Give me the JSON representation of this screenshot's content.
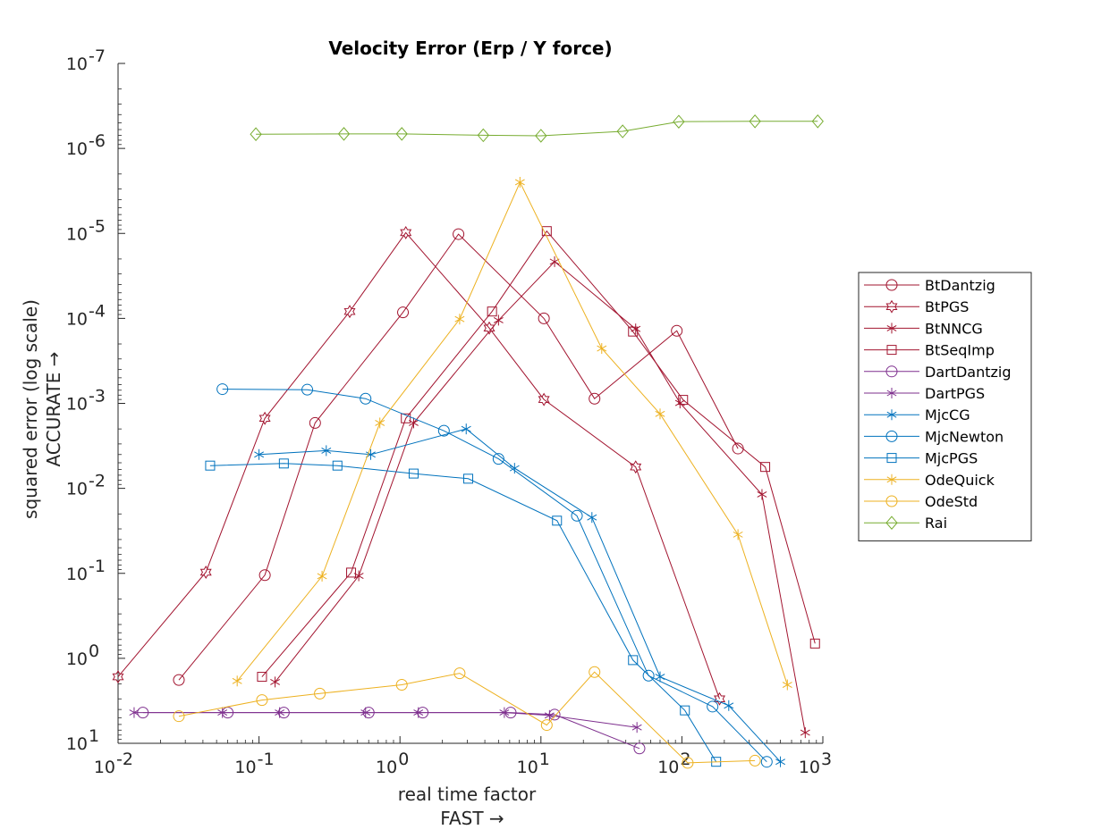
{
  "chart_data": {
    "type": "line",
    "title": "Velocity Error (Erp / Y force)",
    "xlabel": [
      "real time factor",
      "FAST →"
    ],
    "ylabel": [
      "squared error (log scale)",
      "ACCURATE →"
    ],
    "x_scale": "log",
    "y_scale": "log",
    "y_reversed": true,
    "xlim": [
      0.01,
      1000
    ],
    "ylim": [
      1e-07,
      10
    ],
    "x_ticks": [
      {
        "base": "10",
        "exp": "-2"
      },
      {
        "base": "10",
        "exp": "-1"
      },
      {
        "base": "10",
        "exp": "0"
      },
      {
        "base": "10",
        "exp": "1"
      },
      {
        "base": "10",
        "exp": "2"
      },
      {
        "base": "10",
        "exp": "3"
      }
    ],
    "y_ticks": [
      {
        "base": "10",
        "exp": "-7"
      },
      {
        "base": "10",
        "exp": "-6"
      },
      {
        "base": "10",
        "exp": "-5"
      },
      {
        "base": "10",
        "exp": "-4"
      },
      {
        "base": "10",
        "exp": "-3"
      },
      {
        "base": "10",
        "exp": "-2"
      },
      {
        "base": "10",
        "exp": "-1"
      },
      {
        "base": "10",
        "exp": "0"
      },
      {
        "base": "10",
        "exp": "1"
      }
    ],
    "grid": false,
    "legend_position": "right",
    "series": [
      {
        "name": "BtDantzig",
        "color": "#a2142f",
        "marker": "circle",
        "x": [
          0.027,
          0.11,
          0.25,
          1.05,
          2.6,
          10.5,
          24,
          92,
          250
        ],
        "y": [
          1.8,
          0.105,
          0.0017,
          8.5e-05,
          1.02e-05,
          0.0001,
          0.00088,
          0.00014,
          0.0034
        ]
      },
      {
        "name": "BtPGS",
        "color": "#a2142f",
        "marker": "hexagram",
        "x": [
          0.01,
          0.042,
          0.11,
          0.44,
          1.1,
          4.3,
          10.5,
          47,
          185
        ],
        "y": [
          1.65,
          0.097,
          0.0015,
          8.3e-05,
          9.8e-06,
          0.00013,
          0.0009,
          0.0056,
          3.0
        ]
      },
      {
        "name": "BtNNCG",
        "color": "#a2142f",
        "marker": "asterisk",
        "x": [
          0.13,
          0.51,
          1.25,
          5.0,
          12.5,
          47,
          97,
          370,
          750
        ],
        "y": [
          1.9,
          0.107,
          0.0017,
          0.000105,
          2.15e-05,
          0.000133,
          0.00099,
          0.0118,
          7.5
        ]
      },
      {
        "name": "BtSeqImp",
        "color": "#a2142f",
        "marker": "square",
        "x": [
          0.105,
          0.45,
          1.1,
          4.5,
          11,
          45,
          102,
          390,
          880
        ],
        "y": [
          1.65,
          0.098,
          0.0015,
          8.3e-05,
          9.4e-06,
          0.000143,
          0.00091,
          0.0056,
          0.67
        ]
      },
      {
        "name": "DartDantzig",
        "color": "#7e2f8e",
        "marker": "circle",
        "x": [
          0.015,
          0.06,
          0.15,
          0.6,
          1.45,
          6.1,
          12.5,
          50
        ],
        "y": [
          4.35,
          4.35,
          4.35,
          4.35,
          4.35,
          4.35,
          4.6,
          11.5
        ]
      },
      {
        "name": "DartPGS",
        "color": "#7e2f8e",
        "marker": "asterisk",
        "x": [
          0.013,
          0.055,
          0.14,
          0.57,
          1.35,
          5.5,
          11.5,
          48
        ],
        "y": [
          4.35,
          4.35,
          4.35,
          4.35,
          4.35,
          4.35,
          4.7,
          6.5
        ]
      },
      {
        "name": "MjcCG",
        "color": "#0072bd",
        "marker": "asterisk",
        "x": [
          0.1,
          0.3,
          0.62,
          2.95,
          6.5,
          23,
          70,
          215,
          500
        ],
        "y": [
          0.004,
          0.0036,
          0.004,
          0.002,
          0.0058,
          0.022,
          1.65,
          3.6,
          16.5
        ]
      },
      {
        "name": "MjcNewton",
        "color": "#0072bd",
        "marker": "circle",
        "x": [
          0.055,
          0.22,
          0.57,
          2.05,
          5.0,
          18,
          58,
          165,
          400
        ],
        "y": [
          0.00068,
          0.00069,
          0.00088,
          0.0021,
          0.0045,
          0.021,
          1.6,
          3.7,
          16.5
        ]
      },
      {
        "name": "MjcPGS",
        "color": "#0072bd",
        "marker": "square",
        "x": [
          0.045,
          0.15,
          0.36,
          1.25,
          3.05,
          13,
          45,
          105,
          175
        ],
        "y": [
          0.0054,
          0.0051,
          0.0054,
          0.0067,
          0.0077,
          0.024,
          1.05,
          4.1,
          16.5
        ]
      },
      {
        "name": "OdeQuick",
        "color": "#edb120",
        "marker": "asterisk",
        "x": [
          0.07,
          0.28,
          0.72,
          2.65,
          7.1,
          27,
          70,
          250,
          560
        ],
        "y": [
          1.85,
          0.108,
          0.0017,
          0.000102,
          2.5e-06,
          0.000226,
          0.00133,
          0.035,
          2.05
        ]
      },
      {
        "name": "OdeStd",
        "color": "#edb120",
        "marker": "circle",
        "x": [
          0.027,
          0.105,
          0.27,
          1.03,
          2.65,
          11,
          24,
          110,
          330
        ],
        "y": [
          4.8,
          3.1,
          2.6,
          2.05,
          1.5,
          6.1,
          1.45,
          17,
          16
        ]
      },
      {
        "name": "Rai",
        "color": "#77ac30",
        "marker": "diamond",
        "x": [
          0.095,
          0.4,
          1.03,
          3.9,
          10,
          38,
          95,
          330,
          920
        ],
        "y": [
          6.8e-07,
          6.75e-07,
          6.75e-07,
          7e-07,
          7.1e-07,
          6.3e-07,
          4.85e-07,
          4.8e-07,
          4.8e-07
        ]
      }
    ]
  }
}
